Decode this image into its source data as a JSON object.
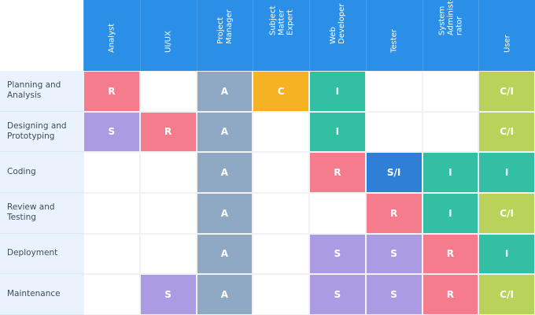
{
  "colors": {
    "header": "#2b8fe8",
    "R": "#f47c8c",
    "A": "#8fa9c4",
    "C": "#f5b324",
    "I": "#33bfa3",
    "S": "#ab9be3",
    "S/I": "#2f7fd6",
    "C/I": "#b9d25a"
  },
  "roles": [
    "Analyst",
    "UI/UX",
    "Project\nManager",
    "Subject\nMatter\nExpert",
    "Web\nDeveloper",
    "Tester",
    "System\nAdminist-\nrator",
    "User"
  ],
  "rows": [
    {
      "task": "Planning and\nAnalysis",
      "cells": [
        "R",
        "",
        "A",
        "C",
        "I",
        "",
        "",
        "C/I"
      ]
    },
    {
      "task": "Designing and\nPrototyping",
      "cells": [
        "S",
        "R",
        "A",
        "",
        "I",
        "",
        "",
        "C/I"
      ]
    },
    {
      "task": "Coding",
      "cells": [
        "",
        "",
        "A",
        "",
        "R",
        "S/I",
        "I",
        "I"
      ]
    },
    {
      "task": "Review and\nTesting",
      "cells": [
        "",
        "",
        "A",
        "",
        "",
        "R",
        "I",
        "C/I"
      ]
    },
    {
      "task": "Deployment",
      "cells": [
        "",
        "",
        "A",
        "",
        "S",
        "S",
        "R",
        "I"
      ]
    },
    {
      "task": "Maintenance",
      "cells": [
        "",
        "S",
        "A",
        "",
        "S",
        "S",
        "R",
        "C/I"
      ]
    }
  ]
}
